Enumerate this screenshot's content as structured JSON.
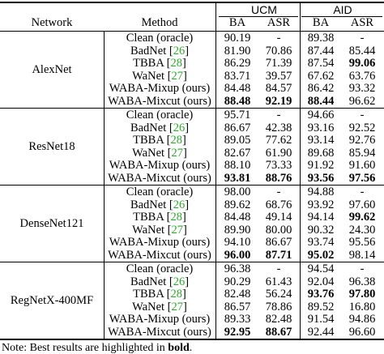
{
  "header": {
    "network": "Network",
    "method": "Method",
    "group_ucm": "UCM",
    "group_aid": "AID",
    "ba": "BA",
    "asr": "ASR"
  },
  "groups": [
    {
      "network": "AlexNet",
      "rows": [
        {
          "method": "Clean (oracle)",
          "cite": "",
          "ucm_ba": "90.19",
          "ucm_asr": "-",
          "aid_ba": "89.38",
          "aid_asr": "-",
          "bold": []
        },
        {
          "method": "BadNet",
          "cite": "26",
          "ucm_ba": "81.90",
          "ucm_asr": "70.86",
          "aid_ba": "87.44",
          "aid_asr": "85.44",
          "bold": []
        },
        {
          "method": "TBBA",
          "cite": "28",
          "ucm_ba": "86.29",
          "ucm_asr": "71.39",
          "aid_ba": "87.54",
          "aid_asr": "99.06",
          "bold": [
            "aid_asr"
          ]
        },
        {
          "method": "WaNet",
          "cite": "27",
          "ucm_ba": "83.71",
          "ucm_asr": "39.57",
          "aid_ba": "67.62",
          "aid_asr": "63.76",
          "bold": []
        },
        {
          "method": "WABA-Mixup (ours)",
          "cite": "",
          "ucm_ba": "84.48",
          "ucm_asr": "84.57",
          "aid_ba": "86.42",
          "aid_asr": "93.32",
          "bold": []
        },
        {
          "method": "WABA-Mixcut (ours)",
          "cite": "",
          "ucm_ba": "88.48",
          "ucm_asr": "92.19",
          "aid_ba": "88.44",
          "aid_asr": "96.62",
          "bold": [
            "ucm_ba",
            "ucm_asr",
            "aid_ba"
          ]
        }
      ]
    },
    {
      "network": "ResNet18",
      "rows": [
        {
          "method": "Clean (oracle)",
          "cite": "",
          "ucm_ba": "95.71",
          "ucm_asr": "-",
          "aid_ba": "94.66",
          "aid_asr": "-",
          "bold": []
        },
        {
          "method": "BadNet",
          "cite": "26",
          "ucm_ba": "86.67",
          "ucm_asr": "42.38",
          "aid_ba": "93.16",
          "aid_asr": "92.52",
          "bold": []
        },
        {
          "method": "TBBA",
          "cite": "28",
          "ucm_ba": "89.05",
          "ucm_asr": "77.62",
          "aid_ba": "93.14",
          "aid_asr": "92.76",
          "bold": []
        },
        {
          "method": "WaNet",
          "cite": "27",
          "ucm_ba": "82.67",
          "ucm_asr": "61.90",
          "aid_ba": "89.68",
          "aid_asr": "85.94",
          "bold": []
        },
        {
          "method": "WABA-Mixup (ours)",
          "cite": "",
          "ucm_ba": "88.10",
          "ucm_asr": "73.33",
          "aid_ba": "91.92",
          "aid_asr": "91.60",
          "bold": []
        },
        {
          "method": "WABA-Mixcut (ours)",
          "cite": "",
          "ucm_ba": "93.81",
          "ucm_asr": "88.76",
          "aid_ba": "93.56",
          "aid_asr": "97.56",
          "bold": [
            "ucm_ba",
            "ucm_asr",
            "aid_ba",
            "aid_asr"
          ]
        }
      ]
    },
    {
      "network": "DenseNet121",
      "rows": [
        {
          "method": "Clean (oracle)",
          "cite": "",
          "ucm_ba": "98.00",
          "ucm_asr": "-",
          "aid_ba": "94.88",
          "aid_asr": "-",
          "bold": []
        },
        {
          "method": "BadNet",
          "cite": "26",
          "ucm_ba": "89.62",
          "ucm_asr": "68.76",
          "aid_ba": "93.92",
          "aid_asr": "97.60",
          "bold": []
        },
        {
          "method": "TBBA",
          "cite": "28",
          "ucm_ba": "84.48",
          "ucm_asr": "49.14",
          "aid_ba": "94.14",
          "aid_asr": "99.62",
          "bold": [
            "aid_asr"
          ]
        },
        {
          "method": "WaNet",
          "cite": "27",
          "ucm_ba": "89.90",
          "ucm_asr": "80.00",
          "aid_ba": "90.32",
          "aid_asr": "24.30",
          "bold": []
        },
        {
          "method": "WABA-Mixup (ours)",
          "cite": "",
          "ucm_ba": "94.10",
          "ucm_asr": "86.67",
          "aid_ba": "93.74",
          "aid_asr": "95.56",
          "bold": []
        },
        {
          "method": "WABA-Mixcut (ours)",
          "cite": "",
          "ucm_ba": "96.00",
          "ucm_asr": "87.71",
          "aid_ba": "95.02",
          "aid_asr": "98.14",
          "bold": [
            "ucm_ba",
            "ucm_asr",
            "aid_ba"
          ]
        }
      ]
    },
    {
      "network": "RegNetX-400MF",
      "rows": [
        {
          "method": "Clean (oracle)",
          "cite": "",
          "ucm_ba": "96.38",
          "ucm_asr": "-",
          "aid_ba": "94.54",
          "aid_asr": "-",
          "bold": []
        },
        {
          "method": "BadNet",
          "cite": "26",
          "ucm_ba": "90.29",
          "ucm_asr": "61.43",
          "aid_ba": "92.04",
          "aid_asr": "96.38",
          "bold": []
        },
        {
          "method": "TBBA",
          "cite": "28",
          "ucm_ba": "82.48",
          "ucm_asr": "56.24",
          "aid_ba": "93.76",
          "aid_asr": "97.80",
          "bold": [
            "aid_ba",
            "aid_asr"
          ]
        },
        {
          "method": "WaNet",
          "cite": "27",
          "ucm_ba": "86.57",
          "ucm_asr": "78.86",
          "aid_ba": "89.52",
          "aid_asr": "16.80",
          "bold": []
        },
        {
          "method": "WABA-Mixup (ours)",
          "cite": "",
          "ucm_ba": "89.33",
          "ucm_asr": "82.48",
          "aid_ba": "91.54",
          "aid_asr": "94.86",
          "bold": []
        },
        {
          "method": "WABA-Mixcut (ours)",
          "cite": "",
          "ucm_ba": "92.95",
          "ucm_asr": "88.67",
          "aid_ba": "92.44",
          "aid_asr": "96.60",
          "bold": [
            "ucm_ba",
            "ucm_asr"
          ]
        }
      ]
    }
  ],
  "note": {
    "prefix": "Note: Best results are highlighted in ",
    "bold_word": "bold",
    "suffix": "."
  }
}
